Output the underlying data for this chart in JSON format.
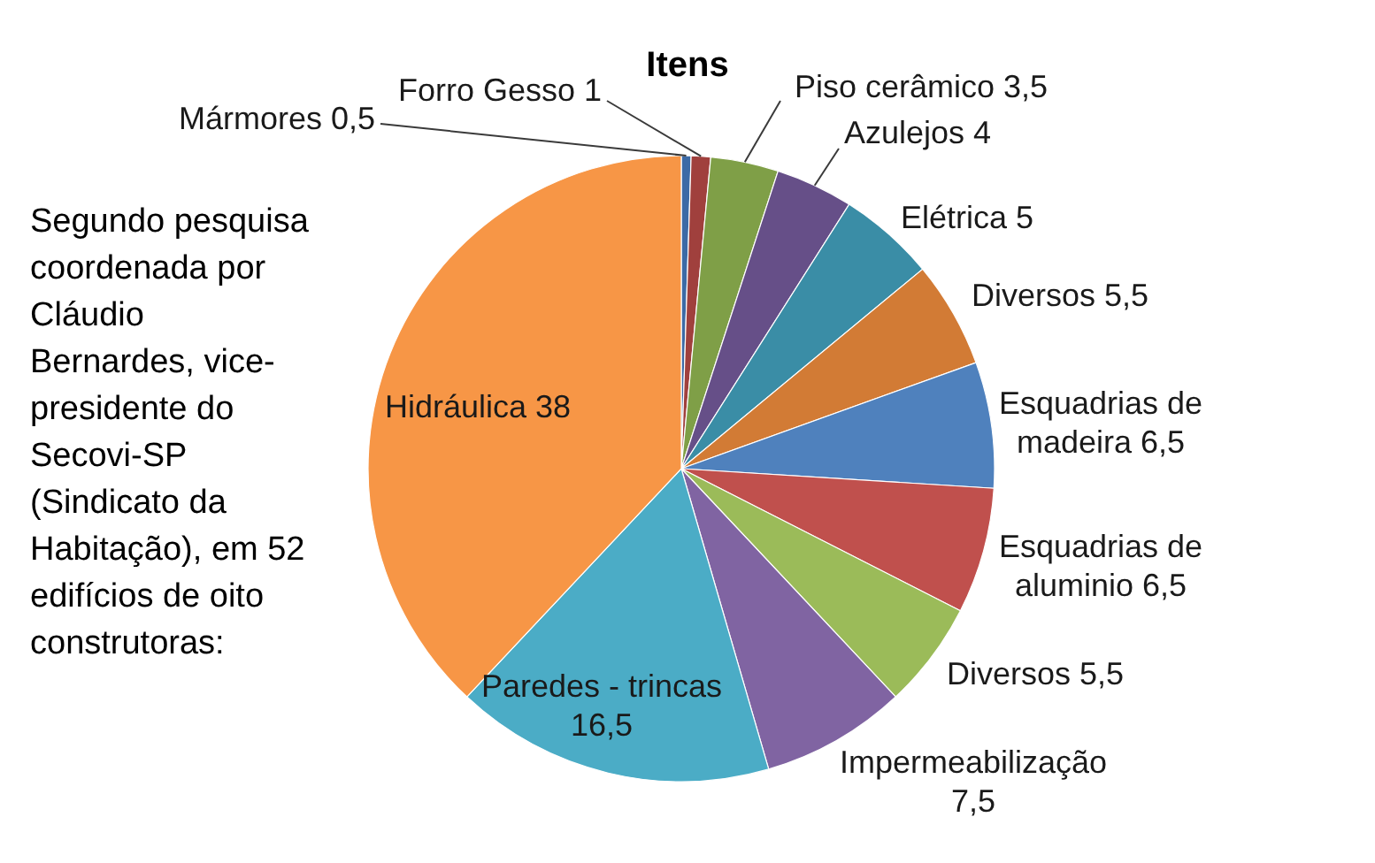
{
  "chart_data": {
    "type": "pie",
    "title": "Itens",
    "categories": [
      "Mármores",
      "Forro Gesso",
      "Piso cerâmico",
      "Azulejos",
      "Elétrica",
      "Diversos",
      "Esquadrias de madeira",
      "Esquadrias de aluminio",
      "Diversos",
      "Impermeabilização",
      "Paredes - trincas",
      "Hidráulica"
    ],
    "values": [
      0.5,
      1,
      3.5,
      4,
      5,
      5.5,
      6.5,
      6.5,
      5.5,
      7.5,
      16.5,
      38
    ],
    "colors": [
      "#3c6aa6",
      "#a0403d",
      "#7f9f47",
      "#664f88",
      "#3a8da6",
      "#d27b35",
      "#4f81bd",
      "#c0504d",
      "#9bbb59",
      "#8064a2",
      "#4bacc6",
      "#f79646"
    ],
    "value_labels": [
      "0,5",
      "1",
      "3,5",
      "4",
      "5",
      "5,5",
      "6,5",
      "6,5",
      "5,5",
      "7,5",
      "16,5",
      "38"
    ],
    "annotations": [
      "Segundo pesquisa coordenada por Cláudio Bernardes, vice-presidente do Secovi-SP (Sindicato da Habitação), em 52 edifícios de oito construtoras:"
    ]
  }
}
